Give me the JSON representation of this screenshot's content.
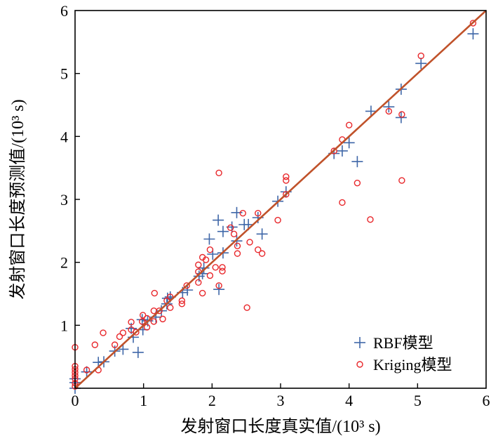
{
  "chart_data": {
    "type": "scatter",
    "title": "",
    "xlabel": "发射窗口长度真实值/(10³ s)",
    "ylabel": "发射窗口长度预测值/(10³ s)",
    "xlim": [
      0,
      6
    ],
    "ylim": [
      0,
      6
    ],
    "xticks": [
      "0",
      "1",
      "2",
      "3",
      "4",
      "5",
      "6"
    ],
    "yticks": [
      "1",
      "2",
      "3",
      "4",
      "5",
      "6"
    ],
    "grid": false,
    "legend_position": "bottom-right",
    "reference_line": {
      "from": [
        0,
        0
      ],
      "to": [
        6,
        6
      ],
      "color": "#c0522a"
    },
    "series": [
      {
        "name": "RBF模型",
        "marker": "plus",
        "color": "#3f67a8",
        "points": [
          [
            0,
            0
          ],
          [
            0,
            0.09
          ],
          [
            0,
            0.15
          ],
          [
            0.17,
            0.26
          ],
          [
            0.34,
            0.41
          ],
          [
            0.42,
            0.42
          ],
          [
            0.58,
            0.59
          ],
          [
            0.7,
            0.62
          ],
          [
            0.92,
            0.57
          ],
          [
            0.82,
            0.95
          ],
          [
            0.85,
            0.81
          ],
          [
            0.99,
            0.93
          ],
          [
            0.98,
            1.09
          ],
          [
            1.06,
            1.07
          ],
          [
            1.18,
            1.13
          ],
          [
            1.26,
            1.23
          ],
          [
            1.34,
            1.34
          ],
          [
            1.39,
            1.45
          ],
          [
            1.35,
            1.43
          ],
          [
            1.57,
            1.52
          ],
          [
            1.64,
            1.56
          ],
          [
            1.81,
            1.78
          ],
          [
            1.86,
            1.82
          ],
          [
            1.88,
            1.91
          ],
          [
            2.01,
            2.13
          ],
          [
            2.1,
            1.57
          ],
          [
            2.16,
            2.15
          ],
          [
            1.96,
            2.37
          ],
          [
            2.09,
            2.67
          ],
          [
            2.16,
            2.49
          ],
          [
            2.29,
            2.56
          ],
          [
            2.36,
            2.34
          ],
          [
            2.36,
            2.79
          ],
          [
            2.47,
            2.6
          ],
          [
            2.53,
            2.6
          ],
          [
            2.73,
            2.45
          ],
          [
            2.67,
            2.71
          ],
          [
            2.96,
            2.97
          ],
          [
            3.08,
            3.12
          ],
          [
            3.78,
            3.73
          ],
          [
            3.9,
            3.77
          ],
          [
            4.0,
            3.9
          ],
          [
            4.12,
            3.6
          ],
          [
            4.32,
            4.4
          ],
          [
            4.58,
            4.47
          ],
          [
            4.76,
            4.3
          ],
          [
            4.76,
            4.75
          ],
          [
            5.05,
            5.16
          ],
          [
            5.81,
            5.63
          ]
        ]
      },
      {
        "name": "Kriging模型",
        "marker": "circle",
        "color": "#e8262a",
        "points": [
          [
            0,
            0.65
          ],
          [
            0,
            0.35
          ],
          [
            0,
            0.3
          ],
          [
            0,
            0.25
          ],
          [
            0,
            0.2
          ],
          [
            0,
            0.15
          ],
          [
            0,
            0.08
          ],
          [
            0,
            0.03
          ],
          [
            0.17,
            0.29
          ],
          [
            0.34,
            0.29
          ],
          [
            0.29,
            0.69
          ],
          [
            0.41,
            0.88
          ],
          [
            0.58,
            0.69
          ],
          [
            0.65,
            0.82
          ],
          [
            0.7,
            0.88
          ],
          [
            0.82,
            1.05
          ],
          [
            0.82,
            0.93
          ],
          [
            0.89,
            0.89
          ],
          [
            0.99,
            1.16
          ],
          [
            0.98,
            1.06
          ],
          [
            1.05,
            1.11
          ],
          [
            1.05,
            0.97
          ],
          [
            1.15,
            1.23
          ],
          [
            1.15,
            1.06
          ],
          [
            1.23,
            1.23
          ],
          [
            1.28,
            1.1
          ],
          [
            1.16,
            1.51
          ],
          [
            1.34,
            1.39
          ],
          [
            1.39,
            1.28
          ],
          [
            1.39,
            1.45
          ],
          [
            1.56,
            1.39
          ],
          [
            1.56,
            1.34
          ],
          [
            1.63,
            1.63
          ],
          [
            1.8,
            1.68
          ],
          [
            1.8,
            1.85
          ],
          [
            1.8,
            1.96
          ],
          [
            1.86,
            2.08
          ],
          [
            1.86,
            1.51
          ],
          [
            1.91,
            2.04
          ],
          [
            1.97,
            1.79
          ],
          [
            1.97,
            2.2
          ],
          [
            2.05,
            1.92
          ],
          [
            2.1,
            1.63
          ],
          [
            2.15,
            1.92
          ],
          [
            2.15,
            1.86
          ],
          [
            2.27,
            2.55
          ],
          [
            2.32,
            2.45
          ],
          [
            2.37,
            2.26
          ],
          [
            2.37,
            2.14
          ],
          [
            2.45,
            2.78
          ],
          [
            2.55,
            2.32
          ],
          [
            2.67,
            2.2
          ],
          [
            2.73,
            2.14
          ],
          [
            2.51,
            1.28
          ],
          [
            2.67,
            2.78
          ],
          [
            2.96,
            2.67
          ],
          [
            2.1,
            3.42
          ],
          [
            3.08,
            3.36
          ],
          [
            3.08,
            3.3
          ],
          [
            3.08,
            3.08
          ],
          [
            3.78,
            3.77
          ],
          [
            3.9,
            3.95
          ],
          [
            3.9,
            2.95
          ],
          [
            4.0,
            4.18
          ],
          [
            4.12,
            3.26
          ],
          [
            4.31,
            2.68
          ],
          [
            4.58,
            4.4
          ],
          [
            4.77,
            4.35
          ],
          [
            4.77,
            3.3
          ],
          [
            5.05,
            5.28
          ],
          [
            5.81,
            5.8
          ]
        ]
      }
    ]
  }
}
